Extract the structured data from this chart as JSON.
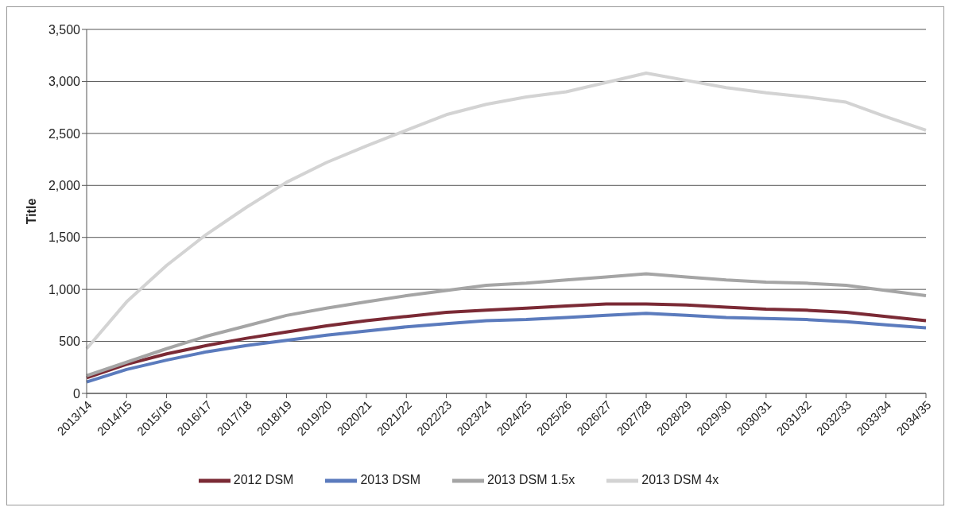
{
  "chart_data": {
    "type": "line",
    "ylabel": "Title",
    "categories": [
      "2013/14",
      "2014/15",
      "2015/16",
      "2016/17",
      "2017/18",
      "2018/19",
      "2019/20",
      "2020/21",
      "2021/22",
      "2022/23",
      "2023/24",
      "2024/25",
      "2025/26",
      "2026/27",
      "2027/28",
      "2028/29",
      "2029/30",
      "2030/31",
      "2031/32",
      "2032/33",
      "2033/34",
      "2034/35"
    ],
    "series": [
      {
        "name": "2012 DSM",
        "color": "#7b2a35",
        "values": [
          150,
          280,
          380,
          460,
          530,
          590,
          650,
          700,
          740,
          780,
          800,
          820,
          840,
          860,
          860,
          850,
          830,
          810,
          800,
          780,
          740,
          700
        ]
      },
      {
        "name": "2013 DSM",
        "color": "#5b7bbd",
        "values": [
          110,
          230,
          320,
          400,
          460,
          510,
          560,
          600,
          640,
          670,
          700,
          710,
          730,
          750,
          770,
          750,
          730,
          720,
          710,
          690,
          660,
          630
        ]
      },
      {
        "name": "2013 DSM 1.5x",
        "color": "#a5a5a5",
        "values": [
          170,
          300,
          430,
          550,
          650,
          750,
          820,
          880,
          940,
          990,
          1040,
          1060,
          1090,
          1120,
          1150,
          1120,
          1090,
          1070,
          1060,
          1040,
          990,
          940
        ]
      },
      {
        "name": "2013 DSM 4x",
        "color": "#d3d3d3",
        "values": [
          430,
          880,
          1230,
          1530,
          1790,
          2030,
          2220,
          2380,
          2530,
          2680,
          2780,
          2850,
          2900,
          2990,
          3080,
          3010,
          2940,
          2890,
          2850,
          2800,
          2660,
          2530
        ]
      }
    ],
    "ylim": [
      0,
      3500
    ],
    "yticks": [
      0,
      {
        "value": 500,
        "label": "500"
      },
      {
        "value": 1000,
        "label": "1,000"
      },
      {
        "value": 1500,
        "label": "1,500"
      },
      {
        "value": 2000,
        "label": "2,000"
      },
      {
        "value": 2500,
        "label": "2,500"
      },
      {
        "value": 3000,
        "label": "3,000"
      },
      {
        "value": 3500,
        "label": "3,500"
      }
    ],
    "grid": "y",
    "legend": "bottom",
    "marker": "none",
    "line_style": "solid"
  }
}
